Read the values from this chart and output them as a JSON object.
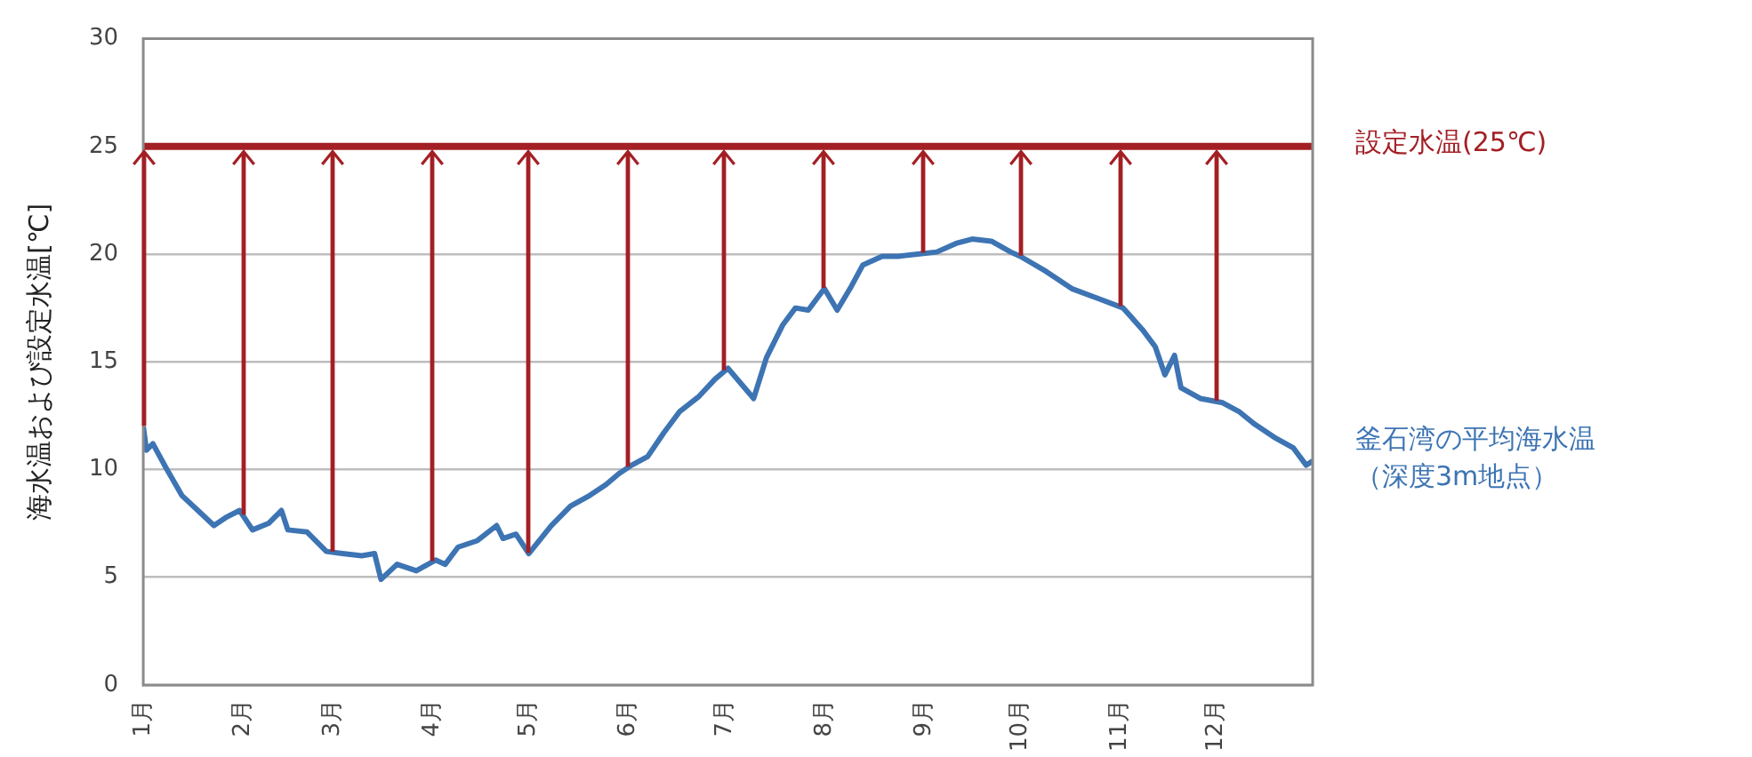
{
  "chart_data": {
    "type": "line",
    "ylabel": "海水温および設定水温[℃]",
    "xlim": [
      "--01-01",
      "--12-31"
    ],
    "xticks": [
      {
        "value": "--01-01",
        "label": "1月"
      },
      {
        "value": "--02-01",
        "label": "2月"
      },
      {
        "value": "--03-01",
        "label": "3月"
      },
      {
        "value": "--04-01",
        "label": "4月"
      },
      {
        "value": "--05-01",
        "label": "5月"
      },
      {
        "value": "--06-01",
        "label": "6月"
      },
      {
        "value": "--07-01",
        "label": "7月"
      },
      {
        "value": "--08-01",
        "label": "8月"
      },
      {
        "value": "--09-01",
        "label": "9月"
      },
      {
        "value": "--10-01",
        "label": "10月"
      },
      {
        "value": "--11-01",
        "label": "11月"
      },
      {
        "value": "--12-01",
        "label": "12月"
      }
    ],
    "ylim": [
      0,
      30
    ],
    "yticks": [
      0,
      5,
      10,
      15,
      20,
      25,
      30
    ],
    "grid": "y",
    "legend": false,
    "marker": "none",
    "ref_lines": [
      {
        "axis": "y",
        "value": 25,
        "label": "設定水温(25℃)",
        "color": "#a31f24"
      }
    ],
    "series": [
      {
        "name": "釜石湾の平均海水温（深度3m地点）",
        "color": "#3d74b3",
        "x": [
          "--01-01",
          "--01-02",
          "--01-04",
          "--01-08",
          "--01-13",
          "--01-18",
          "--01-23",
          "--01-27",
          "--01-31",
          "--02-04",
          "--02-09",
          "--02-13",
          "--02-15",
          "--02-21",
          "--02-27",
          "--03-04",
          "--03-10",
          "--03-14",
          "--03-16",
          "--03-21",
          "--03-27",
          "--04-02",
          "--04-05",
          "--04-09",
          "--04-15",
          "--04-21",
          "--04-23",
          "--04-27",
          "--05-01",
          "--05-08",
          "--05-14",
          "--05-20",
          "--05-25",
          "--05-29",
          "--06-02",
          "--06-07",
          "--06-12",
          "--06-17",
          "--06-23",
          "--06-28",
          "--07-02",
          "--07-06",
          "--07-10",
          "--07-14",
          "--07-19",
          "--07-23",
          "--07-27",
          "--08-01",
          "--08-05",
          "--08-09",
          "--08-13",
          "--08-19",
          "--08-24",
          "--08-30",
          "--09-05",
          "--09-11",
          "--09-16",
          "--09-22",
          "--09-28",
          "--10-01",
          "--10-09",
          "--10-17",
          "--10-26",
          "--11-02",
          "--11-08",
          "--11-12",
          "--11-15",
          "--11-18",
          "--11-20",
          "--11-26",
          "--12-03",
          "--12-08",
          "--12-13",
          "--12-19",
          "--12-25",
          "--12-29",
          "--12-31"
        ],
        "values": [
          12.0,
          10.9,
          11.2,
          10.1,
          8.8,
          8.1,
          7.4,
          7.8,
          8.1,
          7.2,
          7.5,
          8.1,
          7.2,
          7.1,
          6.2,
          6.1,
          6.0,
          6.1,
          4.9,
          5.6,
          5.3,
          5.8,
          5.6,
          6.4,
          6.7,
          7.4,
          6.8,
          7.0,
          6.1,
          7.4,
          8.3,
          8.8,
          9.3,
          9.8,
          10.2,
          10.6,
          11.7,
          12.7,
          13.4,
          14.2,
          14.7,
          14.0,
          13.3,
          15.2,
          16.7,
          17.5,
          17.4,
          18.4,
          17.4,
          18.4,
          19.5,
          19.9,
          19.9,
          20.0,
          20.1,
          20.5,
          20.7,
          20.6,
          20.1,
          19.9,
          19.2,
          18.4,
          17.9,
          17.5,
          16.5,
          15.7,
          14.4,
          15.3,
          13.8,
          13.3,
          13.1,
          12.7,
          12.1,
          11.5,
          11.0,
          10.2,
          10.4
        ]
      }
    ]
  }
}
